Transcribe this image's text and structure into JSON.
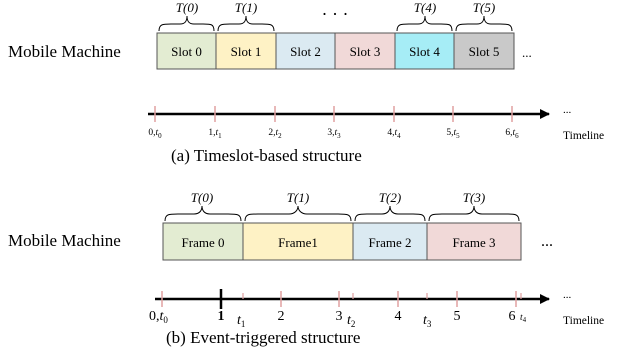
{
  "colors": {
    "green": "#e3ecd2",
    "yellow": "#fef2c5",
    "blue": "#dbeaf2",
    "pink": "#f1d9d8",
    "cyan": "#a6edf6",
    "gray": "#c9c9c9",
    "tick": "#e0a1a1"
  },
  "part_a": {
    "row_label": "Mobile Machine",
    "slots": [
      {
        "label": "Slot 0",
        "color": "green"
      },
      {
        "label": "Slot 1",
        "color": "yellow"
      },
      {
        "label": "Slot 2",
        "color": "blue"
      },
      {
        "label": "Slot 3",
        "color": "pink"
      },
      {
        "label": "Slot 4",
        "color": "cyan"
      },
      {
        "label": "Slot 5",
        "color": "gray"
      }
    ],
    "row_ellipsis": "...",
    "top_ellipsis": "· · ·",
    "braces": [
      {
        "label": "T(0)"
      },
      {
        "label": "T(1)"
      },
      {
        "label": "T(4)"
      },
      {
        "label": "T(5)"
      }
    ],
    "ticks": [
      {
        "num": "0,",
        "sub": "0"
      },
      {
        "num": "1,",
        "sub": "1"
      },
      {
        "num": "2,",
        "sub": "2"
      },
      {
        "num": "3,",
        "sub": "3"
      },
      {
        "num": "4,",
        "sub": "4"
      },
      {
        "num": "5,",
        "sub": "5"
      },
      {
        "num": "6,",
        "sub": "6"
      }
    ],
    "axis_ellipsis": "...",
    "timeline_label": "Timeline",
    "caption": "(a)  Timeslot-based structure"
  },
  "part_b": {
    "row_label": "Mobile Machine",
    "frames": [
      {
        "label": "Frame 0",
        "color": "green"
      },
      {
        "label": "Frame1",
        "color": "yellow"
      },
      {
        "label": "Frame 2",
        "color": "blue"
      },
      {
        "label": "Frame 3",
        "color": "pink"
      }
    ],
    "row_ellipsis": "...",
    "braces": [
      {
        "label": "T(0)"
      },
      {
        "label": "T(1)"
      },
      {
        "label": "T(2)"
      },
      {
        "label": "T(3)"
      }
    ],
    "tick_numbers": [
      "0,",
      "1",
      "2",
      "3",
      "4",
      "5",
      "6"
    ],
    "event_labels": [
      {
        "sub": "0"
      },
      {
        "sub": "1"
      },
      {
        "sub": "2"
      },
      {
        "sub": "3"
      },
      {
        "sub": "4"
      }
    ],
    "axis_ellipsis": "...",
    "timeline_label": "Timeline",
    "caption": "(b)  Event-triggered structure"
  }
}
